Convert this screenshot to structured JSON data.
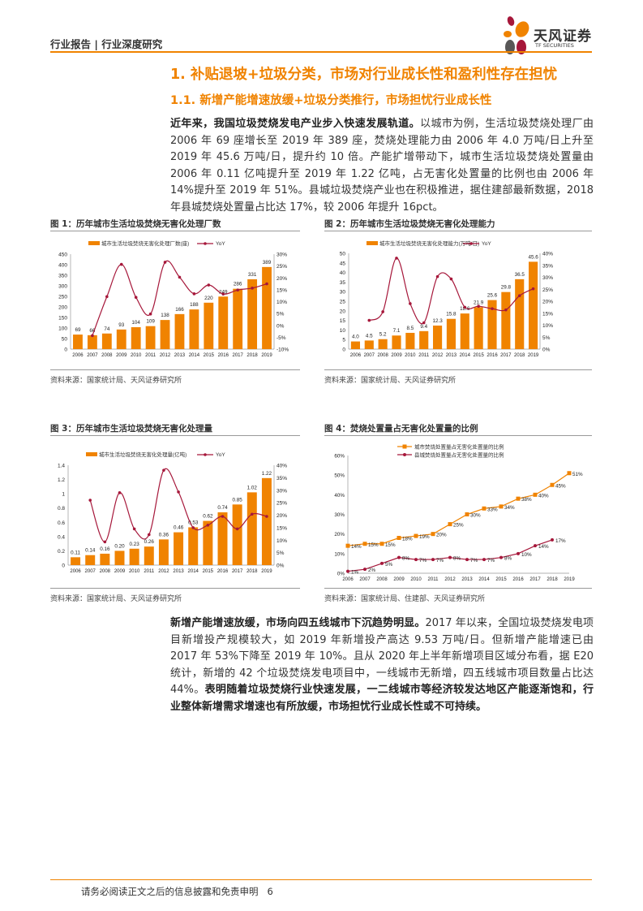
{
  "header": {
    "left_text": "行业报告 | 行业深度研究",
    "logo_cn": "天风证券",
    "logo_en": "TF SECURITIES"
  },
  "headings": {
    "h1": "1. 补贴退坡+垃圾分类，市场对行业成长性和盈利性存在担忧",
    "h2": "1.1. 新增产能增速放缓+垃圾分类推行，市场担忧行业成长性"
  },
  "para1": {
    "bold": "近年来，我国垃圾焚烧发电产业步入快速发展轨道。",
    "text": "以城市为例，生活垃圾焚烧处理厂由 2006 年 69 座增长至 2019 年 389 座，焚烧处理能力由 2006 年 4.0 万吨/日上升至 2019 年 45.6 万吨/日，提升约 10 倍。产能扩增带动下，城市生活垃圾焚烧处置量由 2006 年 0.11 亿吨提升至 2019 年 1.22 亿吨，占无害化处置量的比例也由 2006 年 14%提升至 2019 年 51%。县城垃圾焚烧产业也在积极推进，据住建部最新数据，2018 年县城焚烧处置量占比达 17%，较 2006 年提升 16pct。"
  },
  "para2": {
    "bold1": "新增产能增速放缓，市场向四五线城市下沉趋势明显。",
    "text": "2017 年以来，全国垃圾焚烧发电项目新增投产规模较大，如 2019 年新增投产高达 9.53 万吨/日。但新增产能增速已由 2017 年 53%下降至 2019 年 10%。且从 2020 年上半年新增项目区域分布看，据 E20 统计，新增的 42 个垃圾焚烧发电项目中，一线城市无新增，四五线城市项目数量占比达 44%。",
    "bold2": "表明随着垃圾焚烧行业快速发展，一二线城市等经济较发达地区产能逐渐饱和，行业整体新增需求增速也有所放缓，市场担忧行业成长性或不可持续。"
  },
  "footer": {
    "text": "请务必阅读正文之后的信息披露和免责申明",
    "page": "6"
  },
  "colors": {
    "accent": "#F08300",
    "line": "#A6173A"
  },
  "chart_data": [
    {
      "type": "bar+line",
      "title": "图 1：历年城市生活垃圾焚烧无害化处理厂数",
      "source": "资料来源：国家统计局、天风证券研究所",
      "categories": [
        "2006",
        "2007",
        "2008",
        "2009",
        "2010",
        "2011",
        "2012",
        "2013",
        "2014",
        "2015",
        "2016",
        "2017",
        "2018",
        "2019"
      ],
      "bar": {
        "name": "城市生活垃圾焚烧无害化处理厂数(座)",
        "values": [
          69,
          66,
          74,
          93,
          104,
          109,
          138,
          166,
          188,
          220,
          249,
          286,
          331,
          389
        ],
        "labels": [
          "69",
          "66",
          "74",
          "93",
          "104",
          "109",
          "138",
          "166",
          "188",
          "220",
          "249",
          "286",
          "331",
          "389"
        ]
      },
      "line": {
        "name": "YoY",
        "values": [
          null,
          -4.3,
          12.1,
          25.7,
          11.8,
          4.8,
          26.6,
          20.3,
          13.3,
          17.0,
          13.2,
          14.9,
          15.7,
          17.5
        ]
      },
      "ylim": [
        0,
        450
      ],
      "yticks": [
        "0",
        "50",
        "100",
        "150",
        "200",
        "250",
        "300",
        "350",
        "400",
        "450"
      ],
      "y2lim": [
        -10,
        30
      ],
      "y2ticks": [
        "-10%",
        "-5%",
        "0%",
        "5%",
        "10%",
        "15%",
        "20%",
        "25%",
        "30%"
      ]
    },
    {
      "type": "bar+line",
      "title": "图 2：历年城市生活垃圾焚烧无害化处理能力",
      "source": "资料来源：国家统计局、天风证券研究所",
      "categories": [
        "2006",
        "2007",
        "2008",
        "2009",
        "2010",
        "2011",
        "2012",
        "2013",
        "2014",
        "2015",
        "2016",
        "2017",
        "2018",
        "2019"
      ],
      "bar": {
        "name": "城市生活垃圾焚烧无害化处理能力(万吨/日)",
        "values": [
          4.0,
          4.5,
          5.2,
          7.1,
          8.5,
          9.4,
          12.3,
          15.8,
          18.6,
          21.9,
          25.6,
          29.8,
          36.5,
          45.6
        ],
        "labels": [
          "4.0",
          "4.5",
          "5.2",
          "7.1",
          "8.5",
          "9.4",
          "12.3",
          "15.8",
          "18.6",
          "21.9",
          "25.6",
          "29.8",
          "36.5",
          "45.6"
        ]
      },
      "line": {
        "name": "YoY",
        "values": [
          null,
          12.0,
          15.6,
          38.0,
          19.0,
          11.0,
          30.3,
          29.3,
          17.5,
          17.9,
          16.9,
          16.4,
          22.3,
          25.2
        ]
      },
      "ylim": [
        0,
        50
      ],
      "yticks": [
        "0",
        "5",
        "10",
        "15",
        "20",
        "25",
        "30",
        "35",
        "40",
        "45",
        "50"
      ],
      "y2lim": [
        0,
        40
      ],
      "y2ticks": [
        "0%",
        "5%",
        "10%",
        "15%",
        "20%",
        "25%",
        "30%",
        "35%",
        "40%"
      ]
    },
    {
      "type": "bar+line",
      "title": "图 3：历年城市生活垃圾焚烧无害化处理量",
      "source": "资料来源：国家统计局、天风证券研究所",
      "categories": [
        "2006",
        "2007",
        "2008",
        "2009",
        "2010",
        "2011",
        "2012",
        "2013",
        "2014",
        "2015",
        "2016",
        "2017",
        "2018",
        "2019"
      ],
      "bar": {
        "name": "城市生活垃圾焚烧无害化处理量(亿吨)",
        "values": [
          0.11,
          0.14,
          0.16,
          0.2,
          0.23,
          0.26,
          0.36,
          0.46,
          0.53,
          0.62,
          0.74,
          0.85,
          1.02,
          1.22
        ],
        "labels": [
          "0.11",
          "0.14",
          "0.16",
          "0.20",
          "0.23",
          "0.26",
          "0.36",
          "0.46",
          "0.53",
          "0.62",
          "0.74",
          "0.85",
          "1.02",
          "1.22"
        ]
      },
      "line": {
        "name": "YoY",
        "values": [
          null,
          26.0,
          9.3,
          29.0,
          14.5,
          12.2,
          38.0,
          29.3,
          15.0,
          16.0,
          19.5,
          14.5,
          20.4,
          19.5
        ]
      },
      "ylim": [
        0,
        1.4
      ],
      "yticks": [
        "0",
        "0.2",
        "0.4",
        "0.6",
        "0.8",
        "1",
        "1.2",
        "1.4"
      ],
      "y2lim": [
        0,
        40
      ],
      "y2ticks": [
        "0%",
        "5%",
        "10%",
        "15%",
        "20%",
        "25%",
        "30%",
        "35%",
        "40%"
      ]
    },
    {
      "type": "line",
      "title": "图 4：焚烧处置量占无害化处置量的比例",
      "source": "资料来源：国家统计局、住建部、天风证券研究所",
      "categories": [
        "2006",
        "2007",
        "2008",
        "2009",
        "2010",
        "2011",
        "2012",
        "2013",
        "2014",
        "2015",
        "2016",
        "2017",
        "2018",
        "2019"
      ],
      "series": [
        {
          "name": "城市焚烧处置量占无害化处置量的比例",
          "values": [
            14,
            15,
            15,
            18,
            19,
            20,
            25,
            30,
            33,
            34,
            38,
            40,
            45,
            51
          ],
          "labels": [
            "14%",
            "15%",
            "15%",
            "18%",
            "19%",
            "20%",
            "25%",
            "30%",
            "33%",
            "34%",
            "38%",
            "40%",
            "45%",
            "51%"
          ]
        },
        {
          "name": "县城焚烧处置量占无害化处置量的比例",
          "values": [
            1,
            2,
            5,
            8,
            7,
            7,
            8,
            7,
            7,
            8,
            10,
            14,
            17,
            null
          ],
          "labels": [
            "1%",
            "2%",
            "5%",
            "8%",
            "7%",
            "7%",
            "8%",
            "7%",
            "7%",
            "8%",
            "10%",
            "14%",
            "17%",
            ""
          ]
        }
      ],
      "ylim": [
        0,
        60
      ],
      "yticks": [
        "0%",
        "10%",
        "20%",
        "30%",
        "40%",
        "50%",
        "60%"
      ]
    }
  ]
}
